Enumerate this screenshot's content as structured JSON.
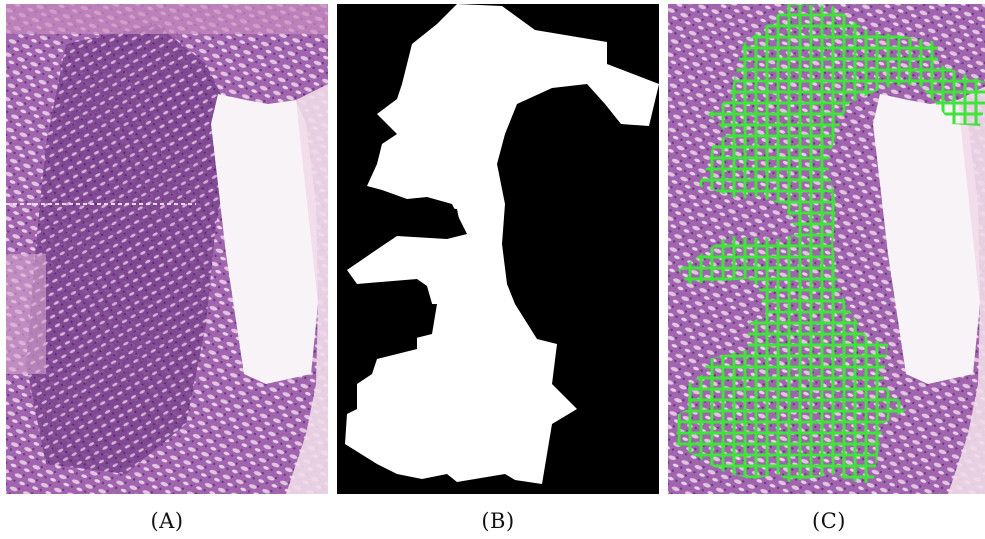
{
  "figure": {
    "panels": [
      {
        "id": "A",
        "caption": "(A)"
      },
      {
        "id": "B",
        "caption": "(B)"
      },
      {
        "id": "C",
        "caption": "(C)"
      }
    ]
  },
  "colors": {
    "tissue_dark": "#8a4d98",
    "tissue_mid": "#a874b6",
    "tissue_pink": "#d7a6cf",
    "background_slide": "#f2e7ef",
    "lumen": "#f7f3f6",
    "mask_foreground": "#ffffff",
    "mask_background": "#000000",
    "patch_grid": "#3fe33a"
  }
}
